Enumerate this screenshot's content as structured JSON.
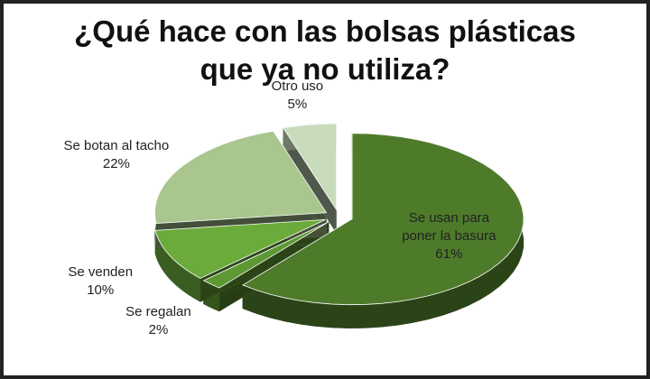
{
  "chart_data": {
    "type": "pie",
    "title": [
      "¿Qué hace con las bolsas plásticas",
      "que ya no utiliza?"
    ],
    "categories": [
      "Se usan para poner la basura",
      "Se regalan",
      "Se venden",
      "Se botan al tacho",
      "Otro uso"
    ],
    "values": [
      61,
      2,
      10,
      22,
      5
    ],
    "value_labels": [
      "61%",
      "2%",
      "10%",
      "22%",
      "5%"
    ],
    "colors": [
      "#4e7b2a",
      "#5e9833",
      "#6aab3c",
      "#a8c68d",
      "#c8dcbb"
    ]
  }
}
